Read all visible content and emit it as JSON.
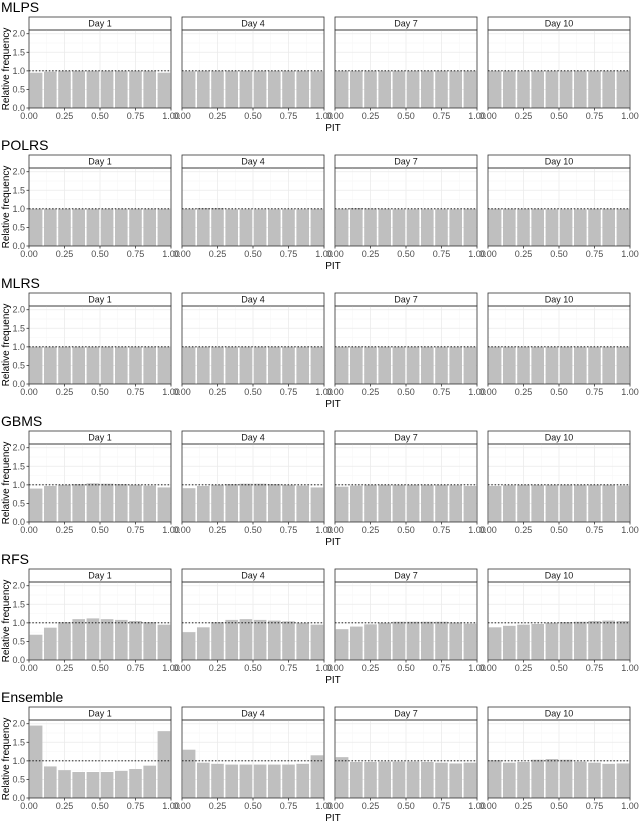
{
  "chart_data": [
    {
      "type": "bar",
      "title": "MLPS",
      "xlabel": "PIT",
      "ylabel": "Relative frequency",
      "xlim": [
        0,
        1
      ],
      "ylim": [
        0,
        2.1
      ],
      "x_ticks": [
        "0.00",
        "0.25",
        "0.50",
        "0.75",
        "1.00"
      ],
      "y_ticks": [
        "0.0",
        "0.5",
        "1.0",
        "1.5",
        "2.0"
      ],
      "reference_line": 1.0,
      "bin_width": 0.1,
      "panels": [
        {
          "name": "Day 1",
          "values": [
            0.95,
            0.98,
            1.0,
            1.0,
            1.0,
            1.0,
            1.0,
            1.0,
            1.0,
            0.95
          ]
        },
        {
          "name": "Day 4",
          "values": [
            0.99,
            1.0,
            1.0,
            1.0,
            1.0,
            1.0,
            1.0,
            1.0,
            1.0,
            0.99
          ]
        },
        {
          "name": "Day 7",
          "values": [
            1.0,
            1.0,
            1.0,
            1.0,
            1.0,
            1.0,
            1.0,
            1.0,
            1.0,
            1.0
          ]
        },
        {
          "name": "Day 10",
          "values": [
            1.0,
            1.0,
            1.0,
            1.0,
            1.0,
            1.0,
            1.0,
            1.0,
            1.0,
            1.0
          ]
        }
      ]
    },
    {
      "type": "bar",
      "title": "POLRS",
      "xlabel": "PIT",
      "ylabel": "Relative frequency",
      "xlim": [
        0,
        1
      ],
      "ylim": [
        0,
        2.1
      ],
      "x_ticks": [
        "0.00",
        "0.25",
        "0.50",
        "0.75",
        "1.00"
      ],
      "y_ticks": [
        "0.0",
        "0.5",
        "1.0",
        "1.5",
        "2.0"
      ],
      "reference_line": 1.0,
      "bin_width": 0.1,
      "panels": [
        {
          "name": "Day 1",
          "values": [
            1.0,
            1.0,
            1.0,
            1.0,
            1.0,
            1.0,
            1.0,
            1.0,
            1.0,
            1.0
          ]
        },
        {
          "name": "Day 4",
          "values": [
            1.0,
            1.02,
            1.02,
            0.99,
            0.99,
            0.99,
            0.99,
            0.99,
            0.99,
            1.0
          ]
        },
        {
          "name": "Day 7",
          "values": [
            1.0,
            1.02,
            1.01,
            1.0,
            0.99,
            0.99,
            0.99,
            0.99,
            0.99,
            1.0
          ]
        },
        {
          "name": "Day 10",
          "values": [
            1.0,
            1.0,
            1.0,
            1.0,
            0.99,
            0.99,
            0.99,
            1.0,
            1.0,
            1.0
          ]
        }
      ]
    },
    {
      "type": "bar",
      "title": "MLRS",
      "xlabel": "PIT",
      "ylabel": "Relative frequency",
      "xlim": [
        0,
        1
      ],
      "ylim": [
        0,
        2.1
      ],
      "x_ticks": [
        "0.00",
        "0.25",
        "0.50",
        "0.75",
        "1.00"
      ],
      "y_ticks": [
        "0.0",
        "0.5",
        "1.0",
        "1.5",
        "2.0"
      ],
      "reference_line": 1.0,
      "bin_width": 0.1,
      "panels": [
        {
          "name": "Day 1",
          "values": [
            1.0,
            1.0,
            1.0,
            1.0,
            1.0,
            1.0,
            1.0,
            1.0,
            1.0,
            1.0
          ]
        },
        {
          "name": "Day 4",
          "values": [
            1.0,
            1.0,
            1.0,
            1.0,
            1.0,
            1.0,
            1.0,
            1.0,
            1.0,
            1.0
          ]
        },
        {
          "name": "Day 7",
          "values": [
            1.0,
            1.0,
            1.0,
            1.0,
            1.0,
            1.0,
            1.0,
            1.0,
            1.0,
            1.0
          ]
        },
        {
          "name": "Day 10",
          "values": [
            1.0,
            1.0,
            1.0,
            1.0,
            1.0,
            1.0,
            1.0,
            1.0,
            1.0,
            1.0
          ]
        }
      ]
    },
    {
      "type": "bar",
      "title": "GBMS",
      "xlabel": "PIT",
      "ylabel": "Relative frequency",
      "xlim": [
        0,
        1
      ],
      "ylim": [
        0,
        2.1
      ],
      "x_ticks": [
        "0.00",
        "0.25",
        "0.50",
        "0.75",
        "1.00"
      ],
      "y_ticks": [
        "0.0",
        "0.5",
        "1.0",
        "1.5",
        "2.0"
      ],
      "reference_line": 1.0,
      "bin_width": 0.1,
      "panels": [
        {
          "name": "Day 1",
          "values": [
            0.9,
            0.97,
            1.0,
            1.02,
            1.04,
            1.03,
            1.02,
            1.0,
            0.98,
            0.93
          ]
        },
        {
          "name": "Day 4",
          "values": [
            0.91,
            0.97,
            1.0,
            1.02,
            1.03,
            1.03,
            1.02,
            1.0,
            0.98,
            0.93
          ]
        },
        {
          "name": "Day 7",
          "values": [
            0.95,
            0.98,
            1.0,
            1.0,
            1.0,
            1.0,
            1.0,
            1.0,
            0.99,
            0.97
          ]
        },
        {
          "name": "Day 10",
          "values": [
            0.97,
            0.99,
            1.0,
            1.0,
            1.0,
            1.0,
            1.0,
            1.0,
            1.0,
            0.98
          ]
        }
      ]
    },
    {
      "type": "bar",
      "title": "RFS",
      "xlabel": "PIT",
      "ylabel": "Relative frequency",
      "xlim": [
        0,
        1
      ],
      "ylim": [
        0,
        2.1
      ],
      "x_ticks": [
        "0.00",
        "0.25",
        "0.50",
        "0.75",
        "1.00"
      ],
      "y_ticks": [
        "0.0",
        "0.5",
        "1.0",
        "1.5",
        "2.0"
      ],
      "reference_line": 1.0,
      "bin_width": 0.1,
      "panels": [
        {
          "name": "Day 1",
          "values": [
            0.68,
            0.87,
            1.02,
            1.1,
            1.12,
            1.1,
            1.08,
            1.05,
            1.02,
            0.95
          ]
        },
        {
          "name": "Day 4",
          "values": [
            0.75,
            0.88,
            1.02,
            1.08,
            1.1,
            1.08,
            1.06,
            1.04,
            1.0,
            0.95
          ]
        },
        {
          "name": "Day 7",
          "values": [
            0.83,
            0.9,
            0.96,
            1.0,
            1.03,
            1.03,
            1.03,
            1.03,
            1.01,
            0.98
          ]
        },
        {
          "name": "Day 10",
          "values": [
            0.88,
            0.92,
            0.95,
            0.97,
            1.0,
            1.02,
            1.03,
            1.05,
            1.06,
            1.05
          ]
        }
      ]
    },
    {
      "type": "bar",
      "title": "Ensemble",
      "xlabel": "PIT",
      "ylabel": "Relative frequency",
      "xlim": [
        0,
        1
      ],
      "ylim": [
        0,
        2.1
      ],
      "x_ticks": [
        "0.00",
        "0.25",
        "0.50",
        "0.75",
        "1.00"
      ],
      "y_ticks": [
        "0.0",
        "0.5",
        "1.0",
        "1.5",
        "2.0"
      ],
      "reference_line": 1.0,
      "bin_width": 0.1,
      "panels": [
        {
          "name": "Day 1",
          "values": [
            1.95,
            0.85,
            0.75,
            0.7,
            0.7,
            0.7,
            0.73,
            0.78,
            0.87,
            1.8
          ]
        },
        {
          "name": "Day 4",
          "values": [
            1.3,
            0.95,
            0.92,
            0.9,
            0.9,
            0.9,
            0.9,
            0.9,
            0.92,
            1.15
          ]
        },
        {
          "name": "Day 7",
          "values": [
            1.1,
            0.97,
            0.97,
            0.98,
            0.98,
            0.98,
            0.97,
            0.95,
            0.93,
            0.95
          ]
        },
        {
          "name": "Day 10",
          "values": [
            1.02,
            0.95,
            0.97,
            1.03,
            1.05,
            1.03,
            0.98,
            0.95,
            0.92,
            0.93
          ]
        }
      ]
    }
  ],
  "colors": {
    "bar_fill": "#bfbfbf",
    "panel_border": "#333333",
    "strip_fill": "#ffffff",
    "grid_major": "#ebebeb",
    "grid_minor": "#f5f5f5",
    "reference_line": "#000000"
  }
}
